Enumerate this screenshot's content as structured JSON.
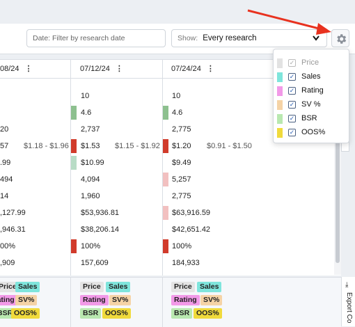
{
  "filters": {
    "date_placeholder": "Date:  Filter by research date",
    "show_label": "Show:",
    "show_value": "Every research"
  },
  "columns": [
    {
      "date": "08/24"
    },
    {
      "date": "07/12/24"
    },
    {
      "date": "07/24/24"
    }
  ],
  "rows": [
    {
      "c0": "",
      "c1": "10",
      "c2": "10"
    },
    {
      "c0": "",
      "c1": "4.6",
      "c2": "4.6"
    },
    {
      "c0": "20",
      "c1": "2,737",
      "c2": "2,775"
    },
    {
      "c0": "57",
      "r0": "$1.18 - $1.96",
      "c1": "$1.53",
      "r1": "$1.15 - $1.92",
      "c2": "$1.20",
      "r2": "$0.91 - $1.50"
    },
    {
      "c0": ".99",
      "c1": "$10.99",
      "c2": "$9.49"
    },
    {
      "c0": "494",
      "c1": "4,094",
      "c2": "5,257"
    },
    {
      "c0": "14",
      "c1": "1,960",
      "c2": "2,775"
    },
    {
      "c0": ",127.99",
      "c1": "$53,936.81",
      "c2": "$63,916.59"
    },
    {
      "c0": ",946.31",
      "c1": "$38,206.14",
      "c2": "$42,651.42"
    },
    {
      "c0": "00%",
      "c1": "100%",
      "c2": "100%"
    },
    {
      "c0": ",909",
      "c1": "157,609",
      "c2": "184,933"
    }
  ],
  "chips": {
    "price": "Price",
    "sales": "Sales",
    "rating": "Rating",
    "sv": "SV%",
    "bsr": "BSR",
    "oos": "OOS%"
  },
  "export_label": "Export Co",
  "settings_menu": [
    {
      "label": "Price",
      "checked": true,
      "disabled": true,
      "color": "#e2e2e2"
    },
    {
      "label": "Sales",
      "checked": true,
      "disabled": false,
      "color": "#7fe5dc"
    },
    {
      "label": "Rating",
      "checked": true,
      "disabled": false,
      "color": "#f29ae8"
    },
    {
      "label": "SV %",
      "checked": true,
      "disabled": false,
      "color": "#f5d3a6"
    },
    {
      "label": "BSR",
      "checked": true,
      "disabled": false,
      "color": "#b9e8b0"
    },
    {
      "label": "OOS%",
      "checked": true,
      "disabled": false,
      "color": "#f0da3c"
    }
  ],
  "colors": {
    "green": "#8dc08f",
    "red": "#d13b2b",
    "light_green": "#b8dcc6",
    "pink": "#f2c0c0",
    "chip_price": "#e4e4e4",
    "chip_sales": "#7fe5dc",
    "chip_rating": "#f29ae8",
    "chip_sv": "#f5d3a6",
    "chip_bsr": "#b9e8b0",
    "chip_oos": "#f0da3c",
    "arrow": "#e8321f"
  }
}
